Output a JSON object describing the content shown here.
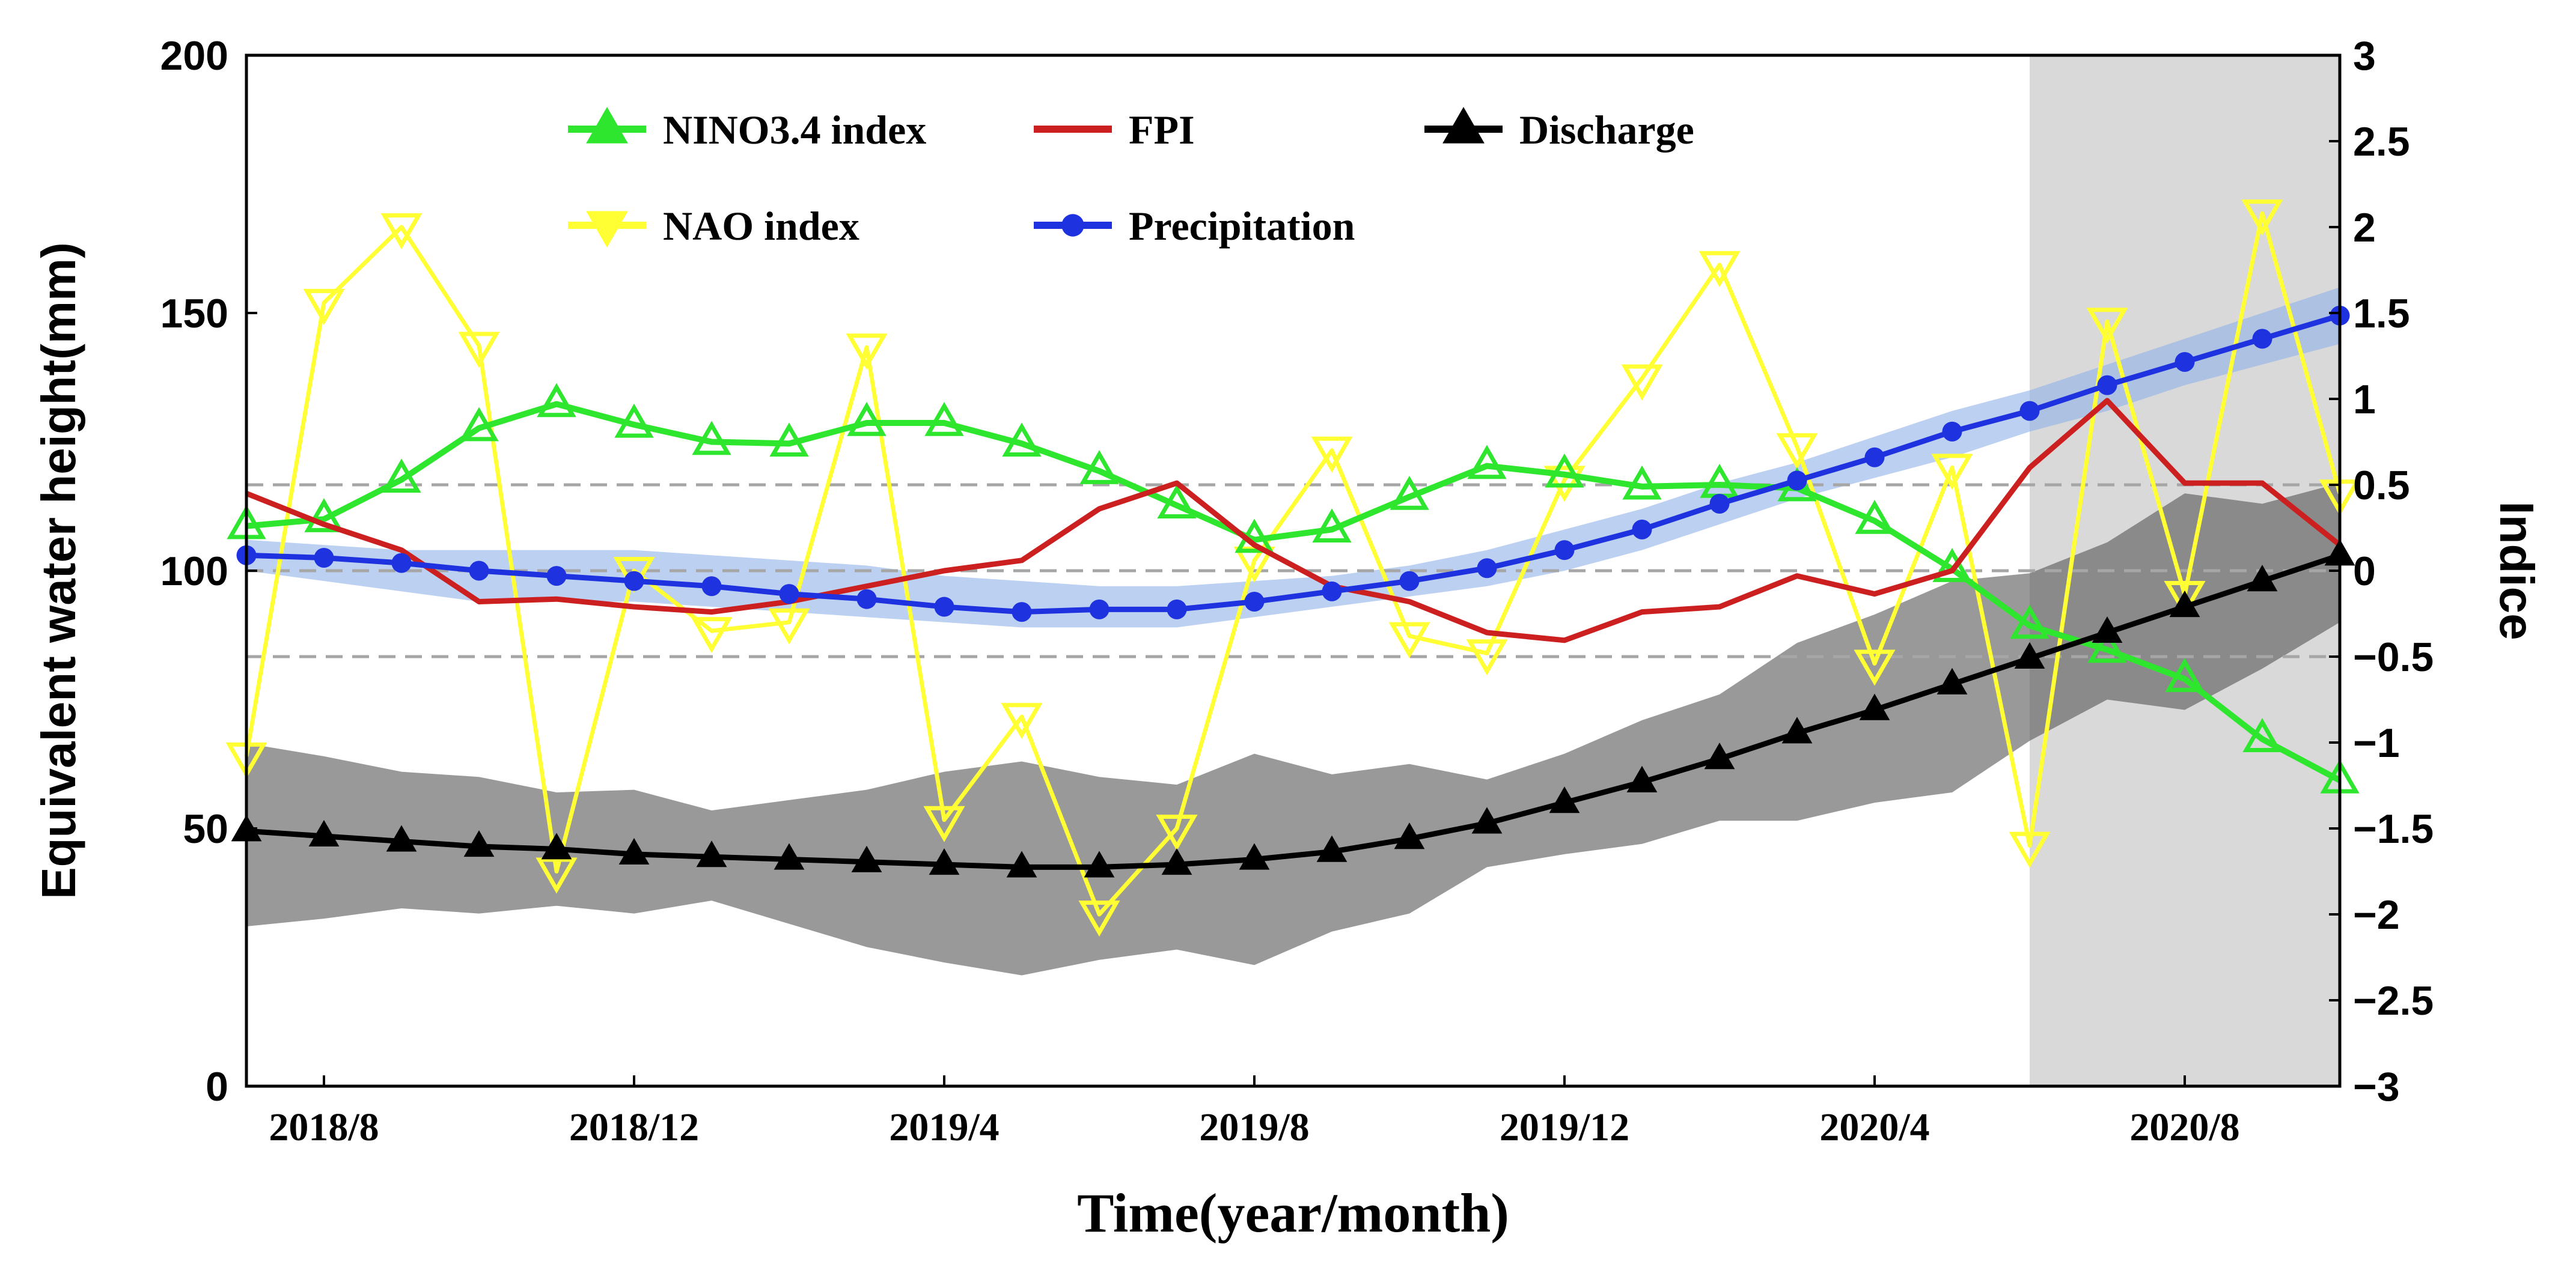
{
  "chart_data": {
    "type": "line",
    "xlabel": "Time(year/month)",
    "ylabel_left": "Equivalent water height(mm)",
    "ylabel_right": "Indice",
    "ylim_left": [
      0,
      200
    ],
    "ylim_right": [
      -3,
      3
    ],
    "yticks_left": [
      "0",
      "50",
      "100",
      "150",
      "200"
    ],
    "yticks_right": [
      "−3",
      "−2.5",
      "−2",
      "−1.5",
      "−1",
      "−0.5",
      "0",
      "0.5",
      "1",
      "1.5",
      "2",
      "2.5",
      "3"
    ],
    "x_tick_labels": [
      {
        "label": "2018/8",
        "month_index": 1
      },
      {
        "label": "2018/12",
        "month_index": 5
      },
      {
        "label": "2019/4",
        "month_index": 9
      },
      {
        "label": "2019/8",
        "month_index": 13
      },
      {
        "label": "2019/12",
        "month_index": 17
      },
      {
        "label": "2020/4",
        "month_index": 21
      },
      {
        "label": "2020/8",
        "month_index": 25
      }
    ],
    "x_range": [
      0,
      27
    ],
    "months": [
      "2018/7",
      "2018/8",
      "2018/9",
      "2018/10",
      "2018/11",
      "2018/12",
      "2019/1",
      "2019/2",
      "2019/3",
      "2019/4",
      "2019/5",
      "2019/6",
      "2019/7",
      "2019/8",
      "2019/9",
      "2019/10",
      "2019/11",
      "2019/12",
      "2020/1",
      "2020/2",
      "2020/3",
      "2020/4",
      "2020/5",
      "2020/6",
      "2020/7",
      "2020/8",
      "2020/9",
      "2020/10"
    ],
    "shaded_period": {
      "from_month_index": 23,
      "to_month_index": 27
    },
    "reference_lines_right": [
      0.5,
      0,
      -0.5
    ],
    "legend": [
      "NINO3.4 index",
      "FPI",
      "Discharge",
      "NAO index",
      "Precipitation"
    ],
    "series": [
      {
        "name": "NINO3.4 index",
        "axis": "right",
        "color": "#2ee62e",
        "marker": "triangle-up",
        "values": [
          0.26,
          0.3,
          0.53,
          0.83,
          0.97,
          0.85,
          0.75,
          0.74,
          0.86,
          0.86,
          0.74,
          0.58,
          0.38,
          0.18,
          0.24,
          0.43,
          0.61,
          0.56,
          0.49,
          0.5,
          0.48,
          0.29,
          0.01,
          -0.32,
          -0.46,
          -0.63,
          -0.98,
          -1.22
        ]
      },
      {
        "name": "NAO index",
        "axis": "right",
        "color": "#ffff33",
        "marker": "triangle-down",
        "values": [
          -1.08,
          1.56,
          2.0,
          1.31,
          -1.75,
          0.0,
          -0.35,
          -0.3,
          1.3,
          -1.45,
          -0.85,
          -2.0,
          -1.5,
          0.06,
          0.7,
          -0.38,
          -0.48,
          0.53,
          1.12,
          1.78,
          0.72,
          -0.54,
          0.6,
          -1.6,
          1.45,
          -0.14,
          2.08,
          0.45
        ]
      },
      {
        "name": "FPI",
        "axis": "left",
        "color": "#cc2020",
        "marker": "none",
        "values": [
          115,
          109,
          104,
          94,
          94.5,
          93,
          92,
          94,
          97,
          100,
          102,
          112,
          117,
          105,
          97,
          94,
          88,
          86.5,
          92,
          93,
          99,
          95.5,
          100,
          120,
          133,
          117,
          117,
          105
        ]
      },
      {
        "name": "Precipitation",
        "axis": "left",
        "color": "#1e32e0",
        "marker": "circle",
        "values": [
          103,
          102.5,
          101.5,
          100,
          99,
          98,
          97,
          95.5,
          94.5,
          93,
          92,
          92.5,
          92.5,
          94,
          96,
          98,
          100.5,
          104,
          108,
          113,
          117.5,
          122,
          127,
          131,
          136,
          140.5,
          145,
          149.5
        ],
        "band_lower": [
          100,
          98,
          96,
          94,
          94,
          94,
          93,
          92,
          91,
          90,
          89,
          89,
          89,
          91,
          93,
          95,
          97,
          100,
          104,
          109,
          114,
          118,
          122,
          127,
          131,
          136,
          140,
          144
        ],
        "band_upper": [
          106,
          105,
          104,
          104,
          104,
          104,
          103,
          102,
          101,
          99,
          98,
          97,
          97,
          98,
          99,
          101,
          104,
          108,
          112,
          117,
          121,
          126,
          131,
          135,
          140,
          145,
          150,
          155
        ]
      },
      {
        "name": "Discharge",
        "axis": "left",
        "color": "#000000",
        "marker": "triangle-up",
        "values": [
          49.5,
          48.5,
          47.5,
          46.5,
          46,
          45,
          44.5,
          44,
          43.5,
          43,
          42.5,
          42.5,
          43,
          44,
          45.5,
          48,
          51,
          55,
          59,
          63.5,
          68.5,
          73,
          78,
          83,
          88,
          93,
          98,
          103
        ],
        "band_lower": [
          31,
          32.5,
          34.5,
          33.5,
          35,
          33.5,
          36,
          31.5,
          27,
          24,
          21.5,
          24.5,
          26.5,
          23.5,
          30,
          33.5,
          42.5,
          45,
          47,
          51.5,
          51.5,
          55,
          57,
          67,
          75,
          73,
          81,
          90
        ],
        "band_upper": [
          66.5,
          64,
          61,
          60,
          57,
          57.5,
          53.5,
          55.5,
          57.5,
          61,
          63,
          60,
          58.5,
          64.5,
          60.5,
          62.5,
          59.5,
          64.5,
          71,
          76,
          86,
          91.5,
          98,
          99.5,
          105.5,
          115,
          113,
          117
        ]
      }
    ]
  }
}
